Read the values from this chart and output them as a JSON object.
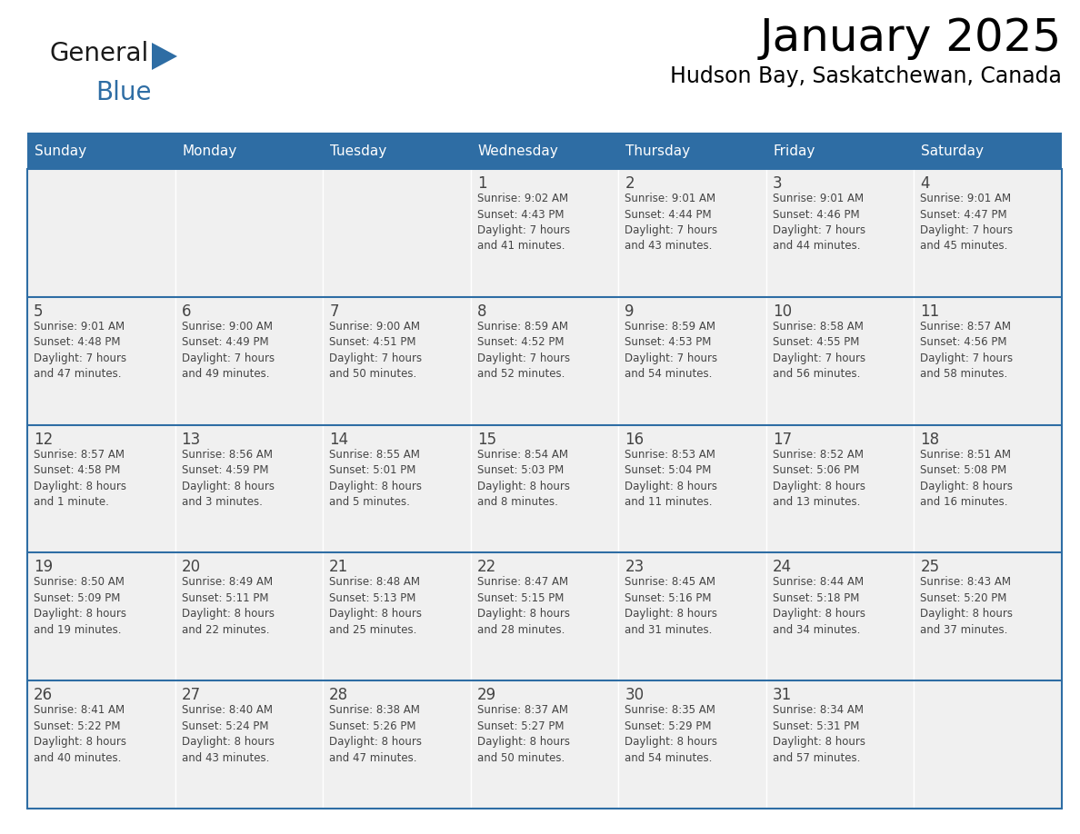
{
  "title": "January 2025",
  "subtitle": "Hudson Bay, Saskatchewan, Canada",
  "header_color": "#2E6DA4",
  "header_text_color": "#FFFFFF",
  "cell_bg_color": "#F0F0F0",
  "border_color": "#2E6DA4",
  "text_color": "#444444",
  "days_of_week": [
    "Sunday",
    "Monday",
    "Tuesday",
    "Wednesday",
    "Thursday",
    "Friday",
    "Saturday"
  ],
  "weeks": [
    [
      {
        "day": null,
        "info": null
      },
      {
        "day": null,
        "info": null
      },
      {
        "day": null,
        "info": null
      },
      {
        "day": 1,
        "info": "Sunrise: 9:02 AM\nSunset: 4:43 PM\nDaylight: 7 hours\nand 41 minutes."
      },
      {
        "day": 2,
        "info": "Sunrise: 9:01 AM\nSunset: 4:44 PM\nDaylight: 7 hours\nand 43 minutes."
      },
      {
        "day": 3,
        "info": "Sunrise: 9:01 AM\nSunset: 4:46 PM\nDaylight: 7 hours\nand 44 minutes."
      },
      {
        "day": 4,
        "info": "Sunrise: 9:01 AM\nSunset: 4:47 PM\nDaylight: 7 hours\nand 45 minutes."
      }
    ],
    [
      {
        "day": 5,
        "info": "Sunrise: 9:01 AM\nSunset: 4:48 PM\nDaylight: 7 hours\nand 47 minutes."
      },
      {
        "day": 6,
        "info": "Sunrise: 9:00 AM\nSunset: 4:49 PM\nDaylight: 7 hours\nand 49 minutes."
      },
      {
        "day": 7,
        "info": "Sunrise: 9:00 AM\nSunset: 4:51 PM\nDaylight: 7 hours\nand 50 minutes."
      },
      {
        "day": 8,
        "info": "Sunrise: 8:59 AM\nSunset: 4:52 PM\nDaylight: 7 hours\nand 52 minutes."
      },
      {
        "day": 9,
        "info": "Sunrise: 8:59 AM\nSunset: 4:53 PM\nDaylight: 7 hours\nand 54 minutes."
      },
      {
        "day": 10,
        "info": "Sunrise: 8:58 AM\nSunset: 4:55 PM\nDaylight: 7 hours\nand 56 minutes."
      },
      {
        "day": 11,
        "info": "Sunrise: 8:57 AM\nSunset: 4:56 PM\nDaylight: 7 hours\nand 58 minutes."
      }
    ],
    [
      {
        "day": 12,
        "info": "Sunrise: 8:57 AM\nSunset: 4:58 PM\nDaylight: 8 hours\nand 1 minute."
      },
      {
        "day": 13,
        "info": "Sunrise: 8:56 AM\nSunset: 4:59 PM\nDaylight: 8 hours\nand 3 minutes."
      },
      {
        "day": 14,
        "info": "Sunrise: 8:55 AM\nSunset: 5:01 PM\nDaylight: 8 hours\nand 5 minutes."
      },
      {
        "day": 15,
        "info": "Sunrise: 8:54 AM\nSunset: 5:03 PM\nDaylight: 8 hours\nand 8 minutes."
      },
      {
        "day": 16,
        "info": "Sunrise: 8:53 AM\nSunset: 5:04 PM\nDaylight: 8 hours\nand 11 minutes."
      },
      {
        "day": 17,
        "info": "Sunrise: 8:52 AM\nSunset: 5:06 PM\nDaylight: 8 hours\nand 13 minutes."
      },
      {
        "day": 18,
        "info": "Sunrise: 8:51 AM\nSunset: 5:08 PM\nDaylight: 8 hours\nand 16 minutes."
      }
    ],
    [
      {
        "day": 19,
        "info": "Sunrise: 8:50 AM\nSunset: 5:09 PM\nDaylight: 8 hours\nand 19 minutes."
      },
      {
        "day": 20,
        "info": "Sunrise: 8:49 AM\nSunset: 5:11 PM\nDaylight: 8 hours\nand 22 minutes."
      },
      {
        "day": 21,
        "info": "Sunrise: 8:48 AM\nSunset: 5:13 PM\nDaylight: 8 hours\nand 25 minutes."
      },
      {
        "day": 22,
        "info": "Sunrise: 8:47 AM\nSunset: 5:15 PM\nDaylight: 8 hours\nand 28 minutes."
      },
      {
        "day": 23,
        "info": "Sunrise: 8:45 AM\nSunset: 5:16 PM\nDaylight: 8 hours\nand 31 minutes."
      },
      {
        "day": 24,
        "info": "Sunrise: 8:44 AM\nSunset: 5:18 PM\nDaylight: 8 hours\nand 34 minutes."
      },
      {
        "day": 25,
        "info": "Sunrise: 8:43 AM\nSunset: 5:20 PM\nDaylight: 8 hours\nand 37 minutes."
      }
    ],
    [
      {
        "day": 26,
        "info": "Sunrise: 8:41 AM\nSunset: 5:22 PM\nDaylight: 8 hours\nand 40 minutes."
      },
      {
        "day": 27,
        "info": "Sunrise: 8:40 AM\nSunset: 5:24 PM\nDaylight: 8 hours\nand 43 minutes."
      },
      {
        "day": 28,
        "info": "Sunrise: 8:38 AM\nSunset: 5:26 PM\nDaylight: 8 hours\nand 47 minutes."
      },
      {
        "day": 29,
        "info": "Sunrise: 8:37 AM\nSunset: 5:27 PM\nDaylight: 8 hours\nand 50 minutes."
      },
      {
        "day": 30,
        "info": "Sunrise: 8:35 AM\nSunset: 5:29 PM\nDaylight: 8 hours\nand 54 minutes."
      },
      {
        "day": 31,
        "info": "Sunrise: 8:34 AM\nSunset: 5:31 PM\nDaylight: 8 hours\nand 57 minutes."
      },
      {
        "day": null,
        "info": null
      }
    ]
  ],
  "logo_general_color": "#1a1a1a",
  "logo_blue_color": "#2E6DA4",
  "logo_triangle_color": "#2E6DA4"
}
